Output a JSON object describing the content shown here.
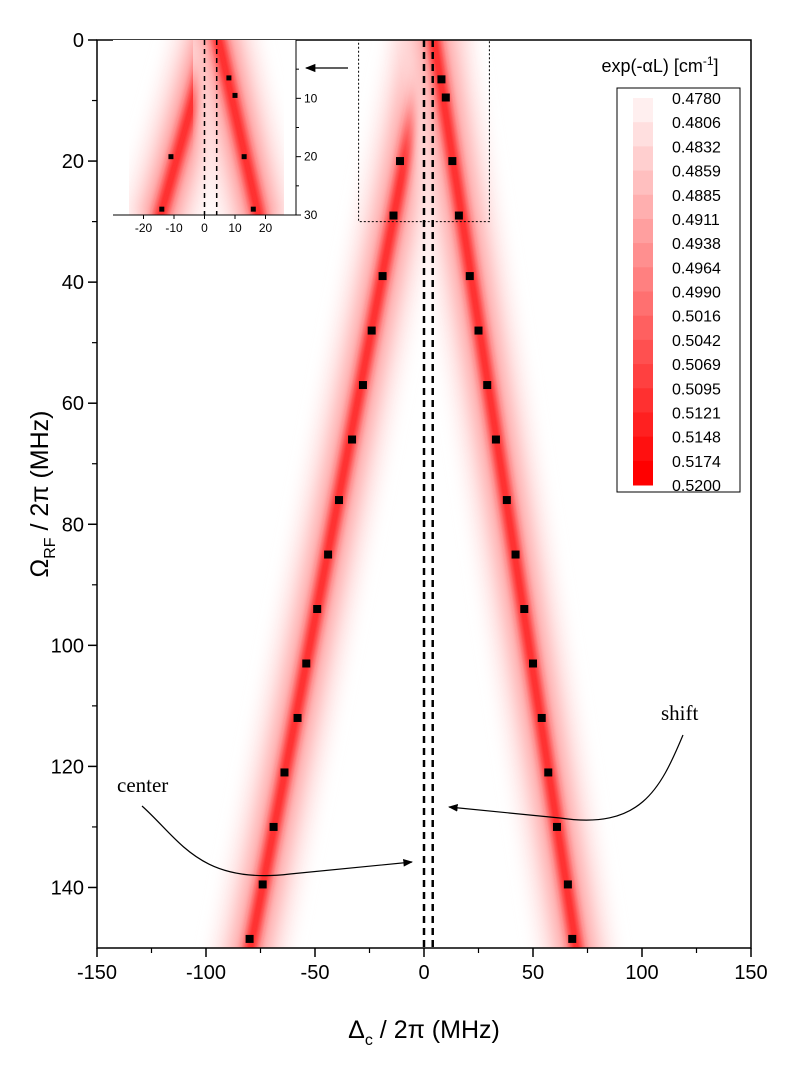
{
  "chart_data": {
    "type": "heatmap",
    "main": {
      "xlabel": "Δ",
      "xlabel_sub": "c",
      "xlabel_rest": " / 2π (MHz)",
      "ylabel": "Ω",
      "ylabel_sub": "RF",
      "ylabel_rest": " / 2π (MHz)",
      "xlim": [
        -150,
        150
      ],
      "ylim": [
        0,
        150
      ],
      "y_inverted": true,
      "xticks": [
        -150,
        -100,
        -50,
        0,
        50,
        100,
        150
      ],
      "yticks": [
        0,
        20,
        40,
        60,
        80,
        100,
        120,
        140
      ],
      "vlines": [
        0,
        4
      ],
      "zoom_box": {
        "x": [
          -30,
          30
        ],
        "y": [
          0,
          30
        ]
      },
      "series": [
        {
          "side": "left",
          "x": [
            -11,
            -14,
            -19,
            -24,
            -28,
            -33,
            -39,
            -44,
            -49,
            -54,
            -58,
            -64,
            -69,
            -74,
            -80
          ],
          "y": [
            20,
            29,
            39,
            48,
            57,
            66,
            76,
            85,
            94,
            103,
            112,
            121,
            130,
            139.5,
            148.5
          ]
        },
        {
          "side": "right",
          "x": [
            8,
            10,
            13,
            16,
            21,
            25,
            29,
            33,
            38,
            42,
            46,
            50,
            54,
            57,
            61,
            66,
            68
          ],
          "y": [
            6.5,
            9.5,
            20,
            29,
            39,
            48,
            57,
            66,
            76,
            85,
            94,
            103,
            112,
            121,
            130,
            139.5,
            148.5
          ]
        }
      ]
    },
    "inset": {
      "xlim": [
        -30,
        30
      ],
      "ylim": [
        0,
        30
      ],
      "y_inverted": true,
      "xticks": [
        -20,
        -10,
        0,
        10,
        20
      ],
      "yticks": [
        10,
        20,
        30
      ],
      "vlines": [
        0,
        4
      ],
      "series_left": {
        "x": [
          -11,
          -14
        ],
        "y": [
          20,
          29
        ]
      },
      "series_right": {
        "x": [
          8,
          10,
          13,
          16
        ],
        "y": [
          6.5,
          9.5,
          20,
          29
        ]
      }
    },
    "colorbar": {
      "title": "exp(-αL) [cm",
      "title_sup": "-1",
      "title_end": "]",
      "levels": [
        "0.4780",
        "0.4806",
        "0.4832",
        "0.4859",
        "0.4885",
        "0.4911",
        "0.4938",
        "0.4964",
        "0.4990",
        "0.5016",
        "0.5042",
        "0.5069",
        "0.5095",
        "0.5121",
        "0.5148",
        "0.5174",
        "0.5200"
      ],
      "color_low": "#ffffff",
      "color_high": "#ff0000"
    },
    "annotations": [
      {
        "text": "center",
        "target": "center-line"
      },
      {
        "text": "shift",
        "target": "shift-line"
      }
    ]
  }
}
